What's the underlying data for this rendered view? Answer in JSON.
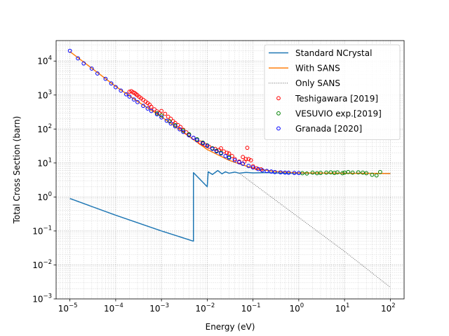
{
  "chart_data": {
    "type": "line",
    "title": "",
    "xlabel": "Energy (eV)",
    "ylabel": "Total Cross Section (barn)",
    "xscale": "log",
    "yscale": "log",
    "xlim": [
      5e-06,
      200
    ],
    "ylim": [
      0.001,
      40000
    ],
    "grid": "major and minor, dotted gray",
    "legend_position": "top-right",
    "x_tick_labels": [
      {
        "base": "10",
        "exp": "−5"
      },
      {
        "base": "10",
        "exp": "−4"
      },
      {
        "base": "10",
        "exp": "−3"
      },
      {
        "base": "10",
        "exp": "−2"
      },
      {
        "base": "10",
        "exp": "−1"
      },
      {
        "base": "10",
        "exp": "0"
      },
      {
        "base": "10",
        "exp": "1"
      },
      {
        "base": "10",
        "exp": "2"
      }
    ],
    "y_tick_labels": [
      {
        "base": "10",
        "exp": "−3"
      },
      {
        "base": "10",
        "exp": "−2"
      },
      {
        "base": "10",
        "exp": "−1"
      },
      {
        "base": "10",
        "exp": "0"
      },
      {
        "base": "10",
        "exp": "1"
      },
      {
        "base": "10",
        "exp": "2"
      },
      {
        "base": "10",
        "exp": "3"
      },
      {
        "base": "10",
        "exp": "4"
      }
    ],
    "series": [
      {
        "name": "Standard NCrystal",
        "kind": "line",
        "color": "#1f77b4",
        "points": [
          [
            1e-05,
            0.9
          ],
          [
            0.0001,
            0.29
          ],
          [
            0.001,
            0.1
          ],
          [
            0.005,
            0.05
          ],
          [
            0.005,
            5.2
          ],
          [
            0.01,
            2.0
          ],
          [
            0.0105,
            5.5
          ],
          [
            0.013,
            4.6
          ],
          [
            0.017,
            6.0
          ],
          [
            0.021,
            4.8
          ],
          [
            0.025,
            5.5
          ],
          [
            0.03,
            5.0
          ],
          [
            0.04,
            5.4
          ],
          [
            0.05,
            5.0
          ],
          [
            0.07,
            5.3
          ],
          [
            0.1,
            5.1
          ],
          [
            0.2,
            5.2
          ],
          [
            0.5,
            5.0
          ],
          [
            1.0,
            5.0
          ],
          [
            10,
            5.0
          ],
          [
            100,
            4.9
          ]
        ]
      },
      {
        "name": "With SANS",
        "kind": "line",
        "color": "#ff7f0e",
        "points": [
          [
            1e-05,
            19000
          ],
          [
            0.0001,
            1800
          ],
          [
            0.0003,
            650
          ],
          [
            0.001,
            230
          ],
          [
            0.003,
            80
          ],
          [
            0.01,
            25
          ],
          [
            0.03,
            12
          ],
          [
            0.05,
            9.5
          ],
          [
            0.1,
            7
          ],
          [
            0.3,
            5.6
          ],
          [
            1.0,
            5.1
          ],
          [
            10,
            5.0
          ],
          [
            100,
            4.9
          ]
        ]
      },
      {
        "name": "Only SANS",
        "kind": "dotted",
        "color": "#666666",
        "points": [
          [
            0.05,
            5
          ],
          [
            0.1,
            2.5
          ],
          [
            1,
            0.25
          ],
          [
            10,
            0.025
          ],
          [
            100,
            0.0022
          ]
        ]
      },
      {
        "name": "Teshigawara [2019]",
        "kind": "markers",
        "color": "#ff0000",
        "points": [
          [
            0.0002,
            1250
          ],
          [
            0.00022,
            1300
          ],
          [
            0.00024,
            1200
          ],
          [
            0.00026,
            1150
          ],
          [
            0.00028,
            1050
          ],
          [
            0.0003,
            980
          ],
          [
            0.00033,
            880
          ],
          [
            0.00036,
            800
          ],
          [
            0.0004,
            720
          ],
          [
            0.00045,
            640
          ],
          [
            0.0005,
            580
          ],
          [
            0.00055,
            520
          ],
          [
            0.0006,
            450
          ],
          [
            0.0007,
            380
          ],
          [
            0.0008,
            330
          ],
          [
            0.0009,
            290
          ],
          [
            0.001,
            340
          ],
          [
            0.0012,
            280
          ],
          [
            0.0014,
            230
          ],
          [
            0.0016,
            200
          ],
          [
            0.0018,
            170
          ],
          [
            0.002,
            150
          ],
          [
            0.0023,
            130
          ],
          [
            0.0026,
            115
          ],
          [
            0.003,
            95
          ],
          [
            0.0035,
            80
          ],
          [
            0.004,
            68
          ],
          [
            0.005,
            55
          ],
          [
            0.006,
            47
          ],
          [
            0.007,
            40
          ],
          [
            0.008,
            37
          ],
          [
            0.009,
            34
          ],
          [
            0.011,
            30
          ],
          [
            0.013,
            27
          ],
          [
            0.015,
            26
          ],
          [
            0.018,
            24
          ],
          [
            0.02,
            27
          ],
          [
            0.023,
            22
          ],
          [
            0.027,
            20
          ],
          [
            0.03,
            19
          ],
          [
            0.035,
            16
          ],
          [
            0.04,
            13
          ],
          [
            0.05,
            11
          ],
          [
            0.06,
            15
          ],
          [
            0.065,
            11
          ],
          [
            0.07,
            13
          ],
          [
            0.075,
            28
          ],
          [
            0.08,
            13
          ],
          [
            0.09,
            12
          ],
          [
            0.1,
            8
          ],
          [
            0.12,
            7
          ],
          [
            0.15,
            6.5
          ]
        ]
      },
      {
        "name": "VESUVIO exp.[2019]",
        "kind": "markers",
        "color": "#008000",
        "points": [
          [
            0.0008,
            290
          ],
          [
            0.001,
            250
          ],
          [
            0.0015,
            170
          ],
          [
            0.002,
            130
          ],
          [
            0.003,
            90
          ],
          [
            0.004,
            70
          ],
          [
            0.006,
            50
          ],
          [
            0.008,
            40
          ],
          [
            0.01,
            33
          ],
          [
            0.013,
            27
          ],
          [
            0.016,
            23
          ],
          [
            0.02,
            20
          ],
          [
            0.03,
            15
          ],
          [
            1.2,
            5.0
          ],
          [
            1.5,
            4.9
          ],
          [
            2,
            5.2
          ],
          [
            2.5,
            5.0
          ],
          [
            3,
            5.1
          ],
          [
            4,
            5.2
          ],
          [
            5,
            5.3
          ],
          [
            6,
            5.1
          ],
          [
            7,
            5.3
          ],
          [
            9,
            5.0
          ],
          [
            10,
            5.2
          ],
          [
            12,
            5.4
          ],
          [
            15,
            5.2
          ],
          [
            20,
            5.3
          ],
          [
            25,
            5.2
          ],
          [
            30,
            5.0
          ],
          [
            40,
            4.5
          ],
          [
            50,
            4.3
          ],
          [
            60,
            5.4
          ]
        ]
      },
      {
        "name": "Granada [2020]",
        "kind": "markers",
        "color": "#0000ff",
        "points": [
          [
            1e-05,
            20000
          ],
          [
            1.5e-05,
            12000
          ],
          [
            2e-05,
            8500
          ],
          [
            3e-05,
            6000
          ],
          [
            4e-05,
            4300
          ],
          [
            6e-05,
            3000
          ],
          [
            8e-05,
            2200
          ],
          [
            0.0001,
            1700
          ],
          [
            0.00013,
            1350
          ],
          [
            0.00017,
            1050
          ],
          [
            0.0002,
            900
          ],
          [
            0.00025,
            740
          ],
          [
            0.0003,
            620
          ],
          [
            0.0004,
            480
          ],
          [
            0.0005,
            400
          ],
          [
            0.0006,
            340
          ],
          [
            0.0008,
            270
          ],
          [
            0.001,
            220
          ],
          [
            0.0013,
            175
          ],
          [
            0.0016,
            145
          ],
          [
            0.002,
            120
          ],
          [
            0.0025,
            98
          ],
          [
            0.003,
            82
          ],
          [
            0.004,
            65
          ],
          [
            0.005,
            55
          ],
          [
            0.006,
            47
          ],
          [
            0.008,
            38
          ],
          [
            0.01,
            32
          ],
          [
            0.013,
            26
          ],
          [
            0.016,
            22
          ],
          [
            0.02,
            19
          ],
          [
            0.025,
            16
          ],
          [
            0.03,
            14
          ],
          [
            0.04,
            12
          ],
          [
            0.05,
            10.5
          ],
          [
            0.06,
            9.5
          ],
          [
            0.08,
            8.2
          ],
          [
            0.1,
            7.4
          ],
          [
            0.13,
            6.6
          ],
          [
            0.16,
            6.1
          ],
          [
            0.2,
            5.8
          ],
          [
            0.25,
            5.6
          ],
          [
            0.3,
            5.4
          ],
          [
            0.4,
            5.3
          ],
          [
            0.5,
            5.2
          ],
          [
            0.6,
            5.15
          ],
          [
            0.8,
            5.1
          ],
          [
            1.0,
            5.05
          ]
        ]
      }
    ]
  }
}
